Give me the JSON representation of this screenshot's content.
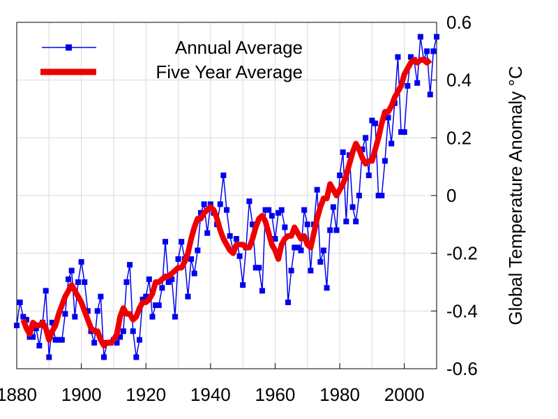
{
  "chart_data": {
    "type": "line",
    "title": "",
    "xlabel": "",
    "ylabel": "Global Temperature Anomaly °C",
    "xlim": [
      1880,
      2010
    ],
    "ylim": [
      -0.6,
      0.6
    ],
    "x_ticks": [
      1880,
      1900,
      1920,
      1940,
      1960,
      1980,
      2000
    ],
    "x_tick_labels": [
      "1880",
      "1900",
      "1920",
      "1940",
      "1960",
      "1980",
      "2000"
    ],
    "y_ticks": [
      0.6,
      0.4,
      0.2,
      0,
      -0.2,
      -0.4,
      -0.6
    ],
    "y_tick_labels": [
      "0.6",
      "0.4",
      "0.2",
      "0",
      "-0.2",
      "-0.4",
      "-0.6"
    ],
    "y_axis_side": "right",
    "grid": true,
    "legend_position": "top-left",
    "series": [
      {
        "name": "Annual Average",
        "color": "#0000ee",
        "marker": "square",
        "x": [
          1880,
          1881,
          1882,
          1883,
          1884,
          1885,
          1886,
          1887,
          1888,
          1889,
          1890,
          1891,
          1892,
          1893,
          1894,
          1895,
          1896,
          1897,
          1898,
          1899,
          1900,
          1901,
          1902,
          1903,
          1904,
          1905,
          1906,
          1907,
          1908,
          1909,
          1910,
          1911,
          1912,
          1913,
          1914,
          1915,
          1916,
          1917,
          1918,
          1919,
          1920,
          1921,
          1922,
          1923,
          1924,
          1925,
          1926,
          1927,
          1928,
          1929,
          1930,
          1931,
          1932,
          1933,
          1934,
          1935,
          1936,
          1937,
          1938,
          1939,
          1940,
          1941,
          1942,
          1943,
          1944,
          1945,
          1946,
          1947,
          1948,
          1949,
          1950,
          1951,
          1952,
          1953,
          1954,
          1955,
          1956,
          1957,
          1958,
          1959,
          1960,
          1961,
          1962,
          1963,
          1964,
          1965,
          1966,
          1967,
          1968,
          1969,
          1970,
          1971,
          1972,
          1973,
          1974,
          1975,
          1976,
          1977,
          1978,
          1979,
          1980,
          1981,
          1982,
          1983,
          1984,
          1985,
          1986,
          1987,
          1988,
          1989,
          1990,
          1991,
          1992,
          1993,
          1994,
          1995,
          1996,
          1997,
          1998,
          1999,
          2000,
          2001,
          2002,
          2003,
          2004,
          2005,
          2006,
          2007,
          2008,
          2009,
          2010
        ],
        "values": [
          -0.45,
          -0.37,
          -0.42,
          -0.43,
          -0.49,
          -0.49,
          -0.46,
          -0.52,
          -0.44,
          -0.33,
          -0.56,
          -0.44,
          -0.5,
          -0.5,
          -0.5,
          -0.41,
          -0.29,
          -0.26,
          -0.42,
          -0.3,
          -0.23,
          -0.3,
          -0.4,
          -0.47,
          -0.51,
          -0.4,
          -0.35,
          -0.56,
          -0.51,
          -0.51,
          -0.5,
          -0.51,
          -0.49,
          -0.47,
          -0.3,
          -0.24,
          -0.47,
          -0.56,
          -0.5,
          -0.36,
          -0.35,
          -0.29,
          -0.42,
          -0.38,
          -0.38,
          -0.32,
          -0.16,
          -0.3,
          -0.29,
          -0.42,
          -0.22,
          -0.16,
          -0.22,
          -0.35,
          -0.22,
          -0.27,
          -0.19,
          -0.06,
          -0.03,
          -0.13,
          -0.03,
          -0.06,
          -0.1,
          -0.03,
          0.07,
          -0.05,
          -0.14,
          -0.19,
          -0.15,
          -0.21,
          -0.31,
          -0.18,
          -0.02,
          -0.1,
          -0.25,
          -0.25,
          -0.33,
          -0.05,
          -0.05,
          -0.07,
          -0.15,
          -0.06,
          -0.05,
          -0.11,
          -0.37,
          -0.26,
          -0.18,
          -0.18,
          -0.19,
          -0.05,
          -0.1,
          -0.26,
          -0.1,
          0.02,
          -0.23,
          -0.19,
          -0.32,
          -0.12,
          -0.04,
          -0.12,
          0.07,
          0.15,
          -0.09,
          0.14,
          -0.04,
          -0.09,
          0.0,
          0.16,
          0.2,
          0.07,
          0.26,
          0.25,
          0.0,
          0.0,
          0.12,
          0.27,
          0.18,
          0.32,
          0.48,
          0.22,
          0.22,
          0.38,
          0.48,
          0.47,
          0.39,
          0.55,
          0.47,
          0.5,
          0.35,
          0.5,
          0.55
        ]
      },
      {
        "name": "Five Year Average",
        "color": "#ee0000",
        "marker": "none",
        "x": [
          1882,
          1883,
          1884,
          1885,
          1886,
          1887,
          1888,
          1889,
          1890,
          1891,
          1892,
          1893,
          1894,
          1895,
          1896,
          1897,
          1898,
          1899,
          1900,
          1901,
          1902,
          1903,
          1904,
          1905,
          1906,
          1907,
          1908,
          1909,
          1910,
          1911,
          1912,
          1913,
          1914,
          1915,
          1916,
          1917,
          1918,
          1919,
          1920,
          1921,
          1922,
          1923,
          1924,
          1925,
          1926,
          1927,
          1928,
          1929,
          1930,
          1931,
          1932,
          1933,
          1934,
          1935,
          1936,
          1937,
          1938,
          1939,
          1940,
          1941,
          1942,
          1943,
          1944,
          1945,
          1946,
          1947,
          1948,
          1949,
          1950,
          1951,
          1952,
          1953,
          1954,
          1955,
          1956,
          1957,
          1958,
          1959,
          1960,
          1961,
          1962,
          1963,
          1964,
          1965,
          1966,
          1967,
          1968,
          1969,
          1970,
          1971,
          1972,
          1973,
          1974,
          1975,
          1976,
          1977,
          1978,
          1979,
          1980,
          1981,
          1982,
          1983,
          1984,
          1985,
          1986,
          1987,
          1988,
          1989,
          1990,
          1991,
          1992,
          1993,
          1994,
          1995,
          1996,
          1997,
          1998,
          1999,
          2000,
          2001,
          2002,
          2003,
          2004,
          2005,
          2006,
          2007,
          2008
        ],
        "values": [
          -0.43,
          -0.46,
          -0.48,
          -0.44,
          -0.45,
          -0.45,
          -0.44,
          -0.46,
          -0.5,
          -0.47,
          -0.45,
          -0.41,
          -0.38,
          -0.35,
          -0.33,
          -0.31,
          -0.33,
          -0.35,
          -0.37,
          -0.4,
          -0.43,
          -0.46,
          -0.47,
          -0.47,
          -0.5,
          -0.52,
          -0.51,
          -0.51,
          -0.5,
          -0.48,
          -0.42,
          -0.39,
          -0.41,
          -0.41,
          -0.43,
          -0.42,
          -0.39,
          -0.37,
          -0.37,
          -0.36,
          -0.34,
          -0.3,
          -0.3,
          -0.29,
          -0.28,
          -0.28,
          -0.27,
          -0.26,
          -0.25,
          -0.25,
          -0.23,
          -0.2,
          -0.15,
          -0.11,
          -0.08,
          -0.08,
          -0.06,
          -0.05,
          -0.04,
          -0.05,
          -0.08,
          -0.12,
          -0.15,
          -0.17,
          -0.19,
          -0.2,
          -0.17,
          -0.17,
          -0.17,
          -0.18,
          -0.18,
          -0.15,
          -0.11,
          -0.08,
          -0.07,
          -0.09,
          -0.13,
          -0.17,
          -0.19,
          -0.22,
          -0.17,
          -0.15,
          -0.14,
          -0.14,
          -0.11,
          -0.13,
          -0.15,
          -0.14,
          -0.17,
          -0.18,
          -0.13,
          -0.08,
          -0.04,
          -0.01,
          -0.01,
          0.04,
          0.02,
          0.0,
          0.02,
          0.04,
          0.07,
          0.11,
          0.15,
          0.18,
          0.16,
          0.13,
          0.11,
          0.12,
          0.12,
          0.16,
          0.2,
          0.25,
          0.29,
          0.29,
          0.31,
          0.34,
          0.36,
          0.38,
          0.42,
          0.44,
          0.46,
          0.47,
          0.46,
          0.47,
          0.47,
          0.46,
          0.47
        ]
      }
    ]
  }
}
